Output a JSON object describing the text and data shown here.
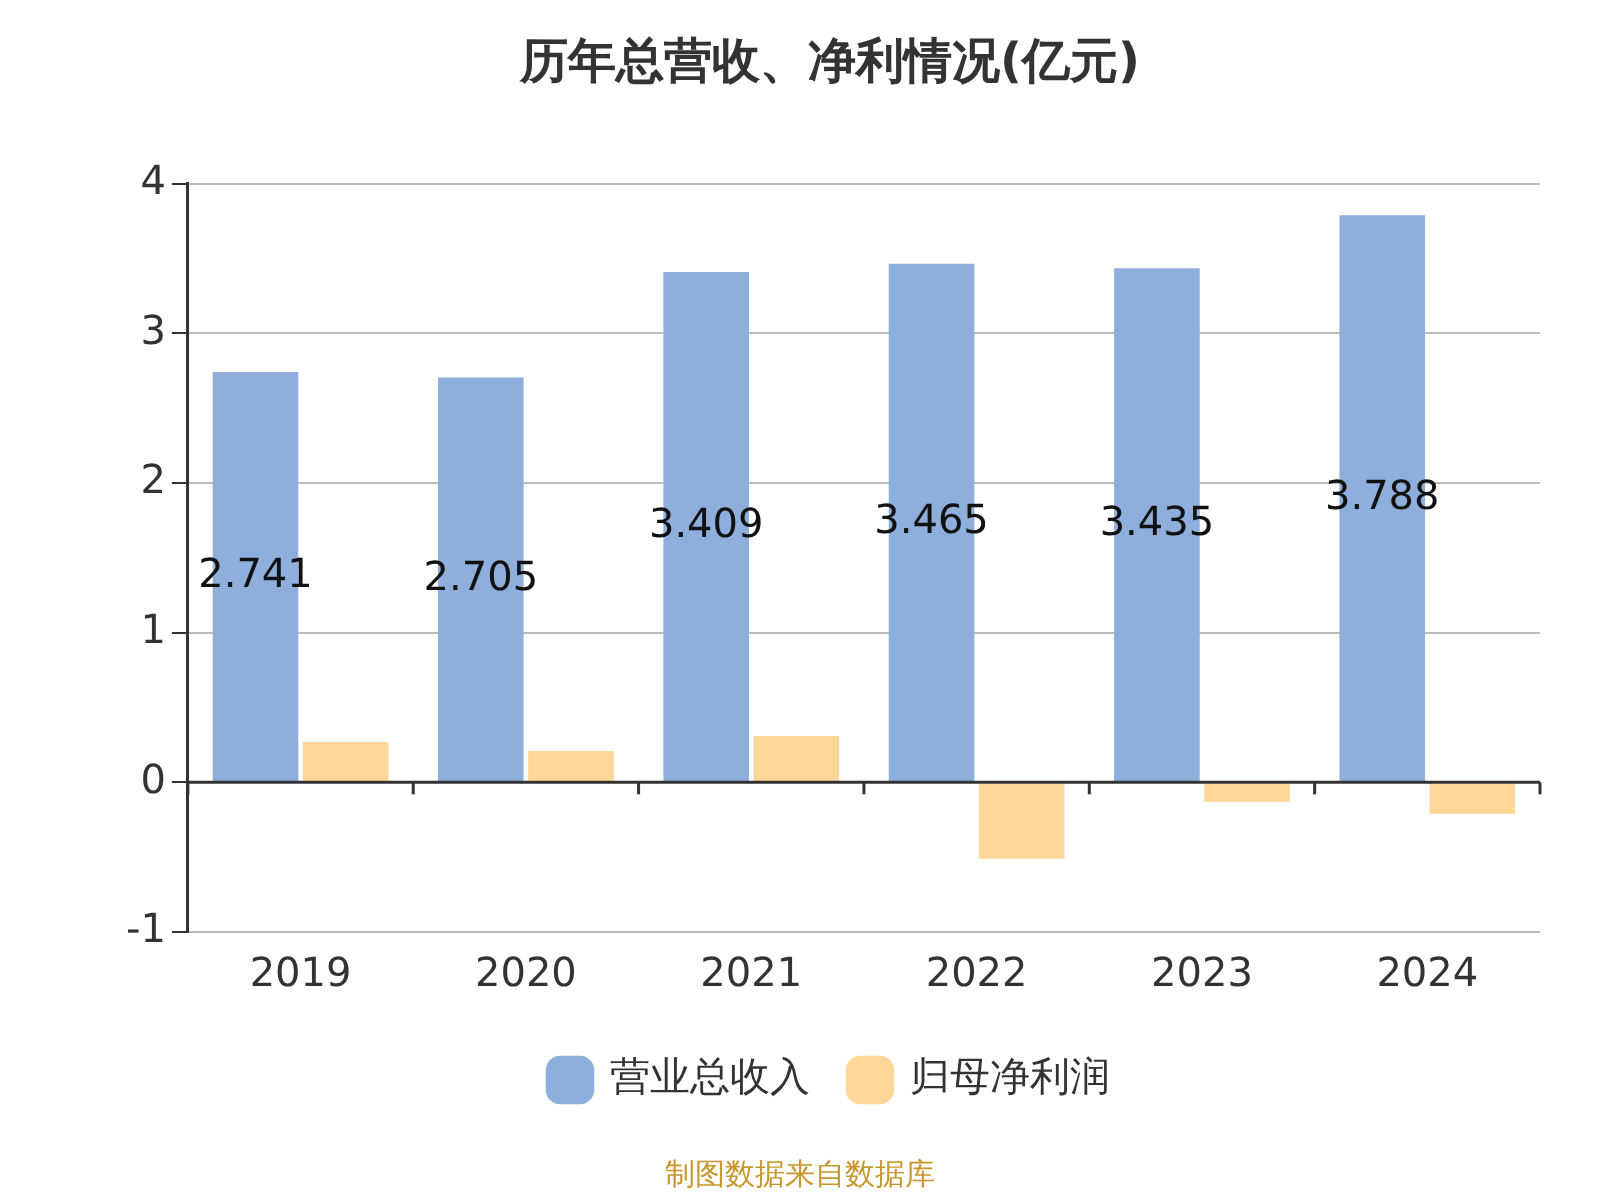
{
  "chart_data": {
    "type": "bar",
    "title": "历年总营收、净利情况(亿元)",
    "categories": [
      "2019",
      "2020",
      "2021",
      "2022",
      "2023",
      "2024"
    ],
    "series": [
      {
        "name": "营业总收入",
        "color": "#8eaedb",
        "values": [
          2.741,
          2.705,
          3.409,
          3.465,
          3.435,
          3.788
        ],
        "value_labels": [
          "2.741",
          "2.705",
          "3.409",
          "3.465",
          "3.435",
          "3.788"
        ]
      },
      {
        "name": "归母净利润",
        "color": "#ffd799",
        "values": [
          0.27,
          0.21,
          0.31,
          -0.51,
          -0.13,
          -0.21
        ]
      }
    ],
    "ylim": [
      -1,
      4
    ],
    "yticks": [
      -1,
      0,
      1,
      2,
      3,
      4
    ],
    "grid": "y",
    "legend": "bottom",
    "annotations": [
      "制图数据来自数据库"
    ]
  }
}
